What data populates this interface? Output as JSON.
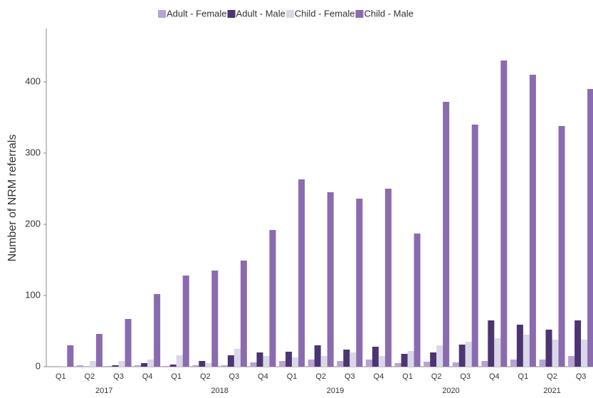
{
  "chart_data": {
    "type": "bar",
    "y_label": "Number of NRM referrals",
    "categories": [
      "Q1",
      "Q2",
      "Q3",
      "Q4",
      "Q1",
      "Q2",
      "Q3",
      "Q4",
      "Q1",
      "Q2",
      "Q3",
      "Q4",
      "Q1",
      "Q2",
      "Q3",
      "Q4",
      "Q1",
      "Q2",
      "Q3"
    ],
    "years": [
      "2017",
      "2018",
      "2019",
      "2020",
      "2021"
    ],
    "series": [
      {
        "name": "Adult - Female",
        "color": "#b9a2d6",
        "values": [
          0,
          2,
          1,
          2,
          1,
          2,
          2,
          6,
          8,
          10,
          8,
          10,
          5,
          7,
          6,
          8,
          10,
          10,
          15
        ]
      },
      {
        "name": "Adult - Male",
        "color": "#4b3572",
        "values": [
          0,
          0,
          2,
          5,
          3,
          8,
          16,
          20,
          21,
          30,
          24,
          28,
          18,
          20,
          31,
          65,
          59,
          52,
          65
        ]
      },
      {
        "name": "Child - Female",
        "color": "#dcd7e8",
        "values": [
          1,
          8,
          8,
          10,
          16,
          5,
          25,
          15,
          13,
          15,
          20,
          15,
          22,
          30,
          35,
          40,
          45,
          38,
          38
        ]
      },
      {
        "name": "Child - Male",
        "color": "#8a6bb0",
        "values": [
          30,
          46,
          67,
          102,
          128,
          135,
          149,
          192,
          263,
          245,
          236,
          250,
          187,
          372,
          340,
          430,
          410,
          338,
          390
        ]
      }
    ],
    "ylim": [
      0,
      475
    ],
    "yticks": [
      0,
      100,
      200,
      300,
      400
    ],
    "grid": false
  }
}
